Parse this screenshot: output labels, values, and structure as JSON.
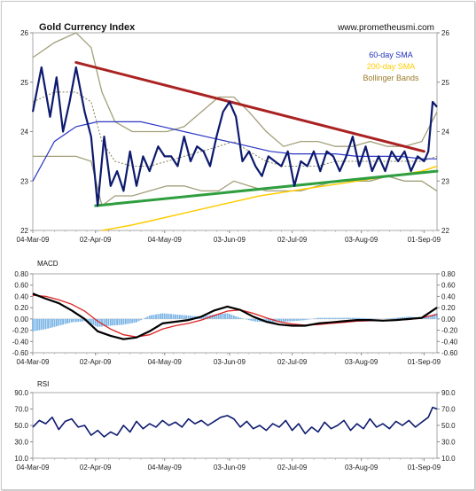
{
  "chart_data": [
    {
      "type": "line",
      "title": "Gold Currency Index",
      "source": "www.prometheusmi.com",
      "ylim": [
        22,
        26
      ],
      "y_ticks": [
        "22",
        "23",
        "24",
        "25",
        "26"
      ],
      "x_ticks": [
        "04-Mar-09",
        "02-Apr-09",
        "04-May-09",
        "03-Jun-09",
        "02-Jul-09",
        "03-Aug-09",
        "01-Sep-09"
      ],
      "x_tick_index": [
        0,
        29,
        61,
        91,
        120,
        152,
        181
      ],
      "n_days": 187,
      "legend": [
        {
          "label": "60-day SMA",
          "color": "#2233bb"
        },
        {
          "label": "200-day SMA",
          "color": "#ffcc00"
        },
        {
          "label": "Bollinger Bands",
          "color": "#9a7b2a"
        }
      ],
      "colors": {
        "price": "#0d1a6e",
        "sma20": "#7f7f55",
        "band": "#a29f7a",
        "sma60": "#2a36c4",
        "sma200": "#ffcc00",
        "resistance": "#aa2222",
        "support": "#2e9e3e"
      },
      "series": [
        {
          "name": "Gold Currency Index",
          "x": [
            0,
            4,
            8,
            11,
            14,
            17,
            20,
            24,
            27,
            30,
            33,
            36,
            39,
            42,
            45,
            48,
            51,
            54,
            58,
            61,
            64,
            67,
            70,
            73,
            76,
            79,
            82,
            85,
            88,
            91,
            94,
            97,
            100,
            103,
            106,
            109,
            112,
            115,
            118,
            121,
            124,
            127,
            130,
            133,
            136,
            139,
            142,
            145,
            148,
            151,
            154,
            157,
            160,
            163,
            166,
            169,
            172,
            175,
            178,
            181,
            183,
            185,
            187
          ],
          "values": [
            24.4,
            25.3,
            24.3,
            25.1,
            24.0,
            24.6,
            25.3,
            24.4,
            23.9,
            22.5,
            23.9,
            22.9,
            23.2,
            22.8,
            23.6,
            22.9,
            23.5,
            23.2,
            23.7,
            23.5,
            23.5,
            23.3,
            23.9,
            23.4,
            23.7,
            23.6,
            23.3,
            23.9,
            24.4,
            24.6,
            24.3,
            23.4,
            23.6,
            23.3,
            23.1,
            23.5,
            23.4,
            23.3,
            23.6,
            22.9,
            23.4,
            23.3,
            23.6,
            23.2,
            23.6,
            23.5,
            23.2,
            23.5,
            23.9,
            23.3,
            23.7,
            23.2,
            23.5,
            23.2,
            23.6,
            23.4,
            23.6,
            23.2,
            23.5,
            23.4,
            23.6,
            24.6,
            24.5
          ]
        },
        {
          "name": "Bollinger Upper",
          "x": [
            0,
            10,
            20,
            27,
            32,
            38,
            46,
            54,
            62,
            70,
            78,
            86,
            93,
            100,
            108,
            116,
            124,
            132,
            140,
            148,
            156,
            164,
            172,
            180,
            187
          ],
          "values": [
            25.5,
            25.8,
            26.0,
            25.7,
            24.8,
            24.2,
            24.0,
            24.0,
            24.0,
            24.1,
            24.4,
            24.7,
            24.7,
            24.4,
            24.0,
            23.7,
            23.8,
            23.8,
            23.7,
            23.7,
            23.8,
            23.7,
            23.7,
            23.8,
            24.4
          ]
        },
        {
          "name": "Bollinger Lower",
          "x": [
            0,
            10,
            20,
            27,
            32,
            38,
            46,
            54,
            62,
            70,
            78,
            86,
            93,
            100,
            108,
            116,
            124,
            132,
            140,
            148,
            156,
            164,
            172,
            180,
            187
          ],
          "values": [
            23.5,
            23.5,
            23.5,
            23.4,
            22.5,
            22.7,
            22.7,
            22.8,
            22.9,
            22.9,
            22.8,
            22.8,
            23.0,
            22.9,
            22.8,
            22.8,
            22.8,
            22.9,
            23.0,
            23.0,
            23.0,
            23.1,
            23.0,
            23.0,
            22.8
          ]
        },
        {
          "name": "20-day SMA",
          "x": [
            0,
            10,
            20,
            27,
            32,
            38,
            46,
            54,
            62,
            70,
            78,
            86,
            93,
            100,
            108,
            116,
            124,
            132,
            140,
            148,
            156,
            164,
            172,
            180,
            187
          ],
          "values": [
            24.6,
            24.8,
            24.8,
            24.6,
            23.8,
            23.4,
            23.3,
            23.3,
            23.4,
            23.5,
            23.6,
            23.7,
            23.8,
            23.6,
            23.4,
            23.3,
            23.3,
            23.3,
            23.4,
            23.4,
            23.4,
            23.4,
            23.4,
            23.4,
            23.5
          ]
        },
        {
          "name": "60-day SMA",
          "x": [
            0,
            10,
            20,
            30,
            40,
            50,
            60,
            70,
            80,
            90,
            100,
            110,
            120,
            130,
            140,
            150,
            160,
            170,
            180,
            187
          ],
          "values": [
            23.0,
            23.8,
            24.1,
            24.2,
            24.2,
            24.2,
            24.1,
            24.0,
            23.9,
            23.8,
            23.7,
            23.6,
            23.55,
            23.55,
            23.55,
            23.5,
            23.5,
            23.5,
            23.45,
            23.45
          ]
        },
        {
          "name": "200-day SMA",
          "x": [
            32,
            45,
            60,
            75,
            90,
            105,
            120,
            135,
            150,
            165,
            180,
            187
          ],
          "values": [
            22.0,
            22.1,
            22.25,
            22.4,
            22.55,
            22.7,
            22.8,
            22.9,
            23.0,
            23.1,
            23.2,
            23.3
          ]
        }
      ],
      "trendlines": [
        {
          "name": "resistance",
          "x": [
            20,
            181
          ],
          "values": [
            25.4,
            23.6
          ]
        },
        {
          "name": "support",
          "x": [
            29,
            187
          ],
          "values": [
            22.5,
            23.2
          ]
        }
      ]
    },
    {
      "type": "line",
      "title": "MACD",
      "ylim": [
        -0.6,
        0.8
      ],
      "y_ticks": [
        "-0.60",
        "-0.40",
        "-0.20",
        "0.00",
        "0.20",
        "0.40",
        "0.60",
        "0.80"
      ],
      "x_ticks": [
        "04-Mar-09",
        "02-Apr-09",
        "04-May-09",
        "03-Jun-09",
        "02-Jul-09",
        "03-Aug-09",
        "01-Sep-09"
      ],
      "colors": {
        "macd": "#000000",
        "signal": "#dd2222",
        "histogram": "#7ab4e6"
      },
      "series": [
        {
          "name": "MACD",
          "x": [
            0,
            6,
            12,
            18,
            24,
            30,
            36,
            42,
            48,
            54,
            60,
            66,
            72,
            78,
            84,
            90,
            96,
            102,
            108,
            114,
            120,
            126,
            132,
            138,
            144,
            150,
            156,
            162,
            168,
            174,
            180,
            187
          ],
          "values": [
            0.45,
            0.36,
            0.28,
            0.15,
            0.0,
            -0.22,
            -0.3,
            -0.36,
            -0.33,
            -0.22,
            -0.08,
            -0.05,
            -0.02,
            0.04,
            0.15,
            0.22,
            0.16,
            0.04,
            -0.05,
            -0.1,
            -0.12,
            -0.12,
            -0.08,
            -0.06,
            -0.04,
            -0.02,
            -0.02,
            -0.03,
            -0.02,
            0.0,
            0.02,
            0.2
          ]
        },
        {
          "name": "Signal",
          "x": [
            0,
            6,
            12,
            18,
            24,
            30,
            36,
            42,
            48,
            54,
            60,
            66,
            72,
            78,
            84,
            90,
            96,
            102,
            108,
            114,
            120,
            126,
            132,
            138,
            144,
            150,
            156,
            162,
            168,
            174,
            180,
            187
          ],
          "values": [
            0.42,
            0.4,
            0.34,
            0.26,
            0.14,
            -0.04,
            -0.18,
            -0.28,
            -0.32,
            -0.28,
            -0.18,
            -0.12,
            -0.08,
            -0.02,
            0.06,
            0.14,
            0.16,
            0.1,
            0.02,
            -0.05,
            -0.09,
            -0.11,
            -0.1,
            -0.08,
            -0.06,
            -0.04,
            -0.03,
            -0.03,
            -0.02,
            -0.01,
            0.02,
            0.08
          ]
        },
        {
          "name": "Histogram",
          "x": [
            0,
            6,
            12,
            18,
            24,
            30,
            36,
            42,
            48,
            54,
            60,
            66,
            72,
            78,
            84,
            90,
            96,
            102,
            108,
            114,
            120,
            126,
            132,
            138,
            144,
            150,
            156,
            162,
            168,
            174,
            180,
            187
          ],
          "values": [
            -0.22,
            -0.18,
            -0.12,
            -0.06,
            -0.04,
            -0.14,
            -0.12,
            -0.1,
            -0.06,
            0.06,
            0.1,
            0.08,
            0.06,
            0.04,
            0.08,
            0.1,
            0.02,
            -0.04,
            -0.06,
            -0.05,
            -0.04,
            -0.02,
            0.02,
            0.02,
            0.02,
            0.02,
            0.01,
            0.0,
            0.02,
            0.04,
            0.02,
            0.1
          ]
        }
      ]
    },
    {
      "type": "line",
      "title": "RSI",
      "ylim": [
        10,
        90
      ],
      "y_ticks": [
        "10.0",
        "30.0",
        "50.0",
        "70.0",
        "90.0"
      ],
      "x_ticks": [
        "04-Mar-09",
        "02-Apr-09",
        "04-May-09",
        "03-Jun-09",
        "02-Jul-09",
        "03-Aug-09",
        "01-Sep-09"
      ],
      "colors": {
        "rsi": "#0d1a6e"
      },
      "series": [
        {
          "name": "RSI",
          "x": [
            0,
            3,
            6,
            9,
            12,
            15,
            18,
            21,
            24,
            27,
            30,
            33,
            36,
            39,
            42,
            45,
            48,
            51,
            54,
            57,
            60,
            63,
            66,
            69,
            72,
            75,
            78,
            81,
            84,
            87,
            90,
            93,
            96,
            99,
            102,
            105,
            108,
            111,
            114,
            117,
            120,
            123,
            126,
            129,
            132,
            135,
            138,
            141,
            144,
            147,
            150,
            153,
            156,
            159,
            162,
            165,
            168,
            171,
            174,
            177,
            180,
            183,
            185,
            187
          ],
          "values": [
            48,
            56,
            52,
            60,
            45,
            55,
            58,
            48,
            50,
            38,
            44,
            36,
            42,
            38,
            50,
            42,
            55,
            46,
            52,
            48,
            56,
            50,
            54,
            48,
            58,
            52,
            56,
            50,
            55,
            60,
            62,
            58,
            48,
            55,
            46,
            50,
            44,
            52,
            48,
            56,
            44,
            52,
            40,
            48,
            42,
            54,
            46,
            50,
            56,
            44,
            52,
            46,
            58,
            48,
            52,
            46,
            55,
            50,
            56,
            48,
            54,
            60,
            72,
            70
          ]
        }
      ]
    }
  ]
}
